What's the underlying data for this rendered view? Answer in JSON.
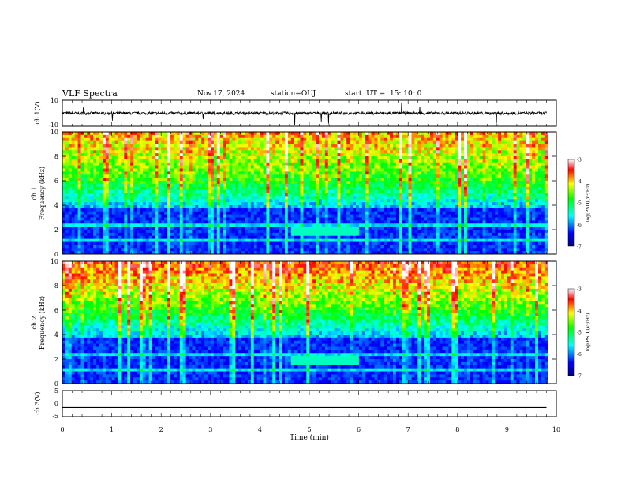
{
  "header": {
    "title": "VLF Spectra",
    "date": "Nov.17, 2024",
    "station": "station=OUJ",
    "start": "start  UT =  15: 10: 0"
  },
  "chart_data": [
    {
      "type": "line",
      "panel": "ch1-waveform",
      "ylabel": "ch.1(V)",
      "ylim": [
        -10,
        10
      ],
      "yticks": [
        "10",
        "-10"
      ],
      "baseline": 0,
      "xlim": [
        0,
        10
      ]
    },
    {
      "type": "heatmap",
      "panel": "ch1-spectrogram",
      "ylabel": "ch.1\nFrequency (kHz)",
      "ylim": [
        0,
        10
      ],
      "yticks": [
        "0",
        "2",
        "4",
        "6",
        "8",
        "10"
      ],
      "xlim": [
        0,
        10
      ],
      "colorbar": {
        "range": [
          -7,
          -3
        ],
        "ticks": [
          "-3",
          "-4",
          "-5",
          "-6",
          "-7"
        ],
        "label": "log(PSD)(V²/Hz)"
      }
    },
    {
      "type": "heatmap",
      "panel": "ch2-spectrogram",
      "ylabel": "ch.2\nFrequency (kHz)",
      "ylim": [
        0,
        10
      ],
      "yticks": [
        "0",
        "2",
        "4",
        "6",
        "8",
        "10"
      ],
      "xlim": [
        0,
        10
      ],
      "colorbar": {
        "range": [
          -7,
          -3
        ],
        "ticks": [
          "-3",
          "-4",
          "-5",
          "-6",
          "-7"
        ],
        "label": "log(PSD)(V²/Hz)"
      }
    },
    {
      "type": "line",
      "panel": "ch3-waveform",
      "ylabel": "ch.3(V)",
      "ylim": [
        -5,
        5
      ],
      "yticks": [
        "5",
        "0",
        "-5"
      ],
      "value": -1.5,
      "xlim": [
        0,
        10
      ],
      "xticks": [
        "0",
        "1",
        "2",
        "3",
        "4",
        "5",
        "6",
        "7",
        "8",
        "9",
        "10"
      ],
      "xlabel": "Time (min)"
    }
  ],
  "colors": {
    "low": "#00008b",
    "mid": "#00ffff",
    "high": "#ff0000"
  }
}
